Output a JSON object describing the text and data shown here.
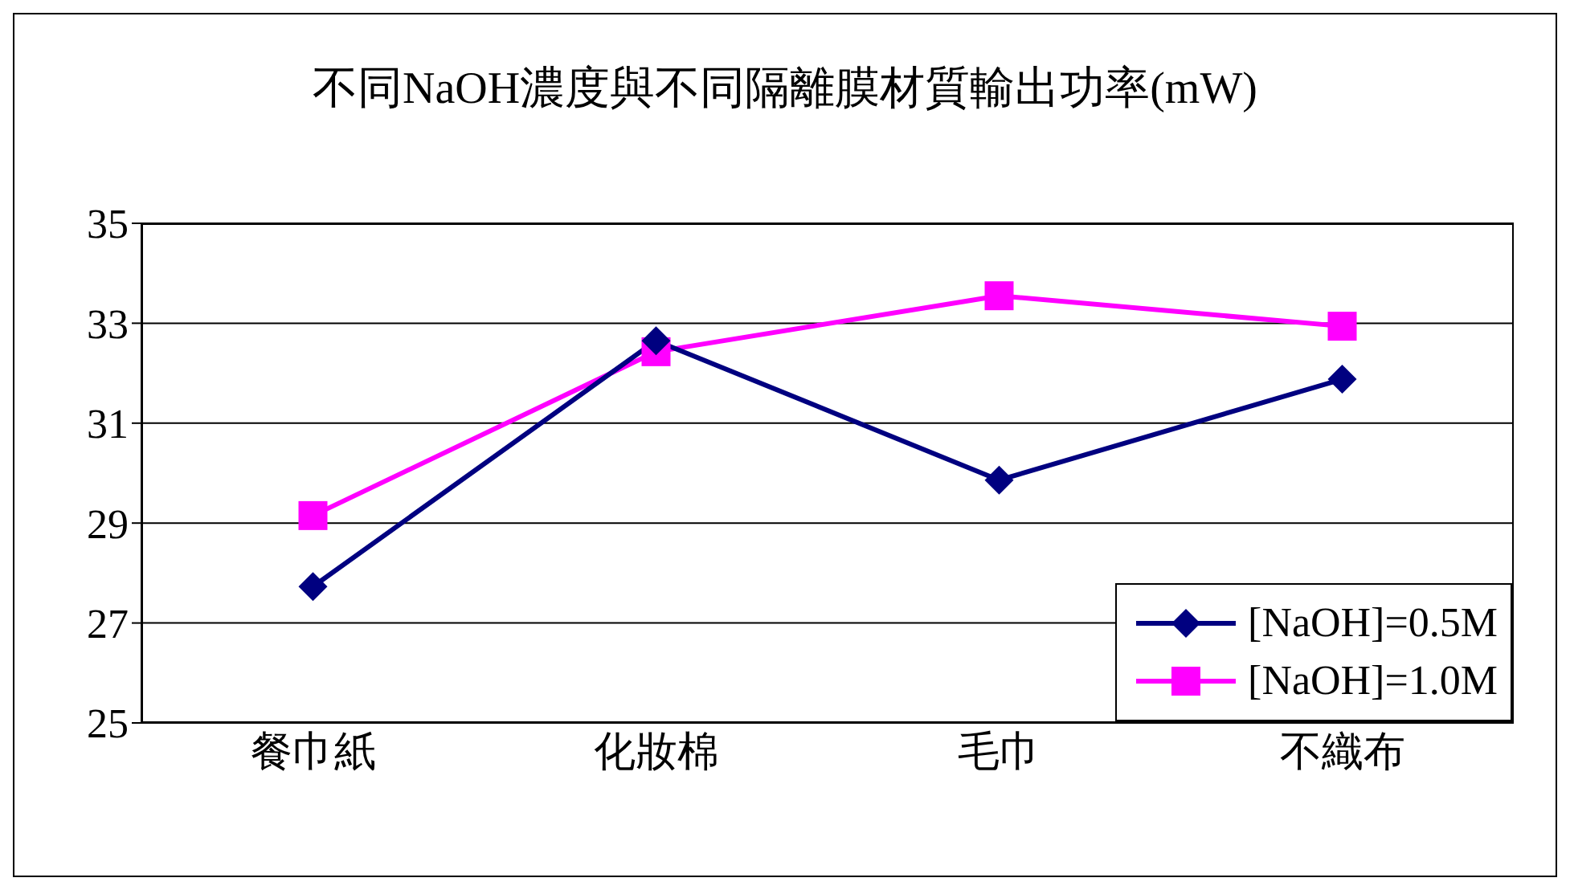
{
  "chart_data": {
    "type": "line",
    "title": "不同NaOH濃度與不同隔離膜材質輸出功率(mW)",
    "categories": [
      "餐巾紙",
      "化妝棉",
      "毛巾",
      "不織布"
    ],
    "series": [
      {
        "name": "[NaOH]=0.5M",
        "color": "#000080",
        "marker": "diamond",
        "values": [
          27.73,
          32.65,
          29.86,
          31.88
        ]
      },
      {
        "name": "[NaOH]=1.0M",
        "color": "#ff00ff",
        "marker": "square",
        "values": [
          29.15,
          32.43,
          33.55,
          32.94
        ]
      }
    ],
    "ylim": [
      25,
      35
    ],
    "yticks": [
      25,
      27,
      29,
      31,
      33,
      35
    ],
    "grid": "y",
    "legend": "bottom right"
  }
}
